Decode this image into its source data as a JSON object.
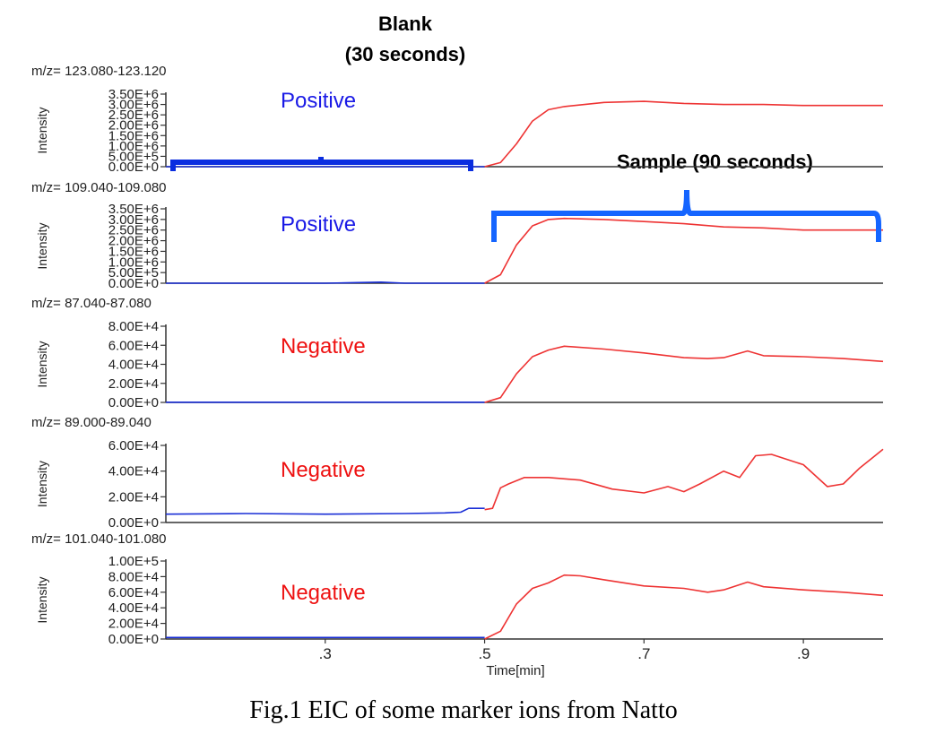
{
  "annotations": {
    "blank_title": "Blank",
    "blank_duration": "(30 seconds)",
    "sample_label": "Sample (90 seconds)"
  },
  "caption": "Fig.1 EIC of some marker ions from Natto",
  "colors": {
    "blank_trace": "#1a2fd6",
    "sample_trace": "#ee3333",
    "positive_mode": "#1a1ae6",
    "negative_mode": "#ee1111",
    "bracket": "#1565ff",
    "blank_bracket": "#0a2de0"
  },
  "chart_data": [
    {
      "type": "line",
      "title": "m/z= 123.080-123.120",
      "mode_label": "Positive",
      "ylabel": "Intensity",
      "xlabel": "",
      "xlim": [
        0.1,
        1.0
      ],
      "x_ticks": [],
      "ylim": [
        0,
        3500000
      ],
      "y_ticks": [
        {
          "v": 0,
          "label": "0.00E+0"
        },
        {
          "v": 500000,
          "label": "5.00E+5"
        },
        {
          "v": 1000000,
          "label": "1.00E+6"
        },
        {
          "v": 1500000,
          "label": "1.50E+6"
        },
        {
          "v": 2000000,
          "label": "2.00E+6"
        },
        {
          "v": 2500000,
          "label": "2.50E+6"
        },
        {
          "v": 3000000,
          "label": "3.00E+6"
        },
        {
          "v": 3500000,
          "label": "3.50E+6"
        }
      ],
      "series": [
        {
          "role": "blank",
          "x": [
            0.1,
            0.2,
            0.3,
            0.4,
            0.5
          ],
          "y": [
            0,
            0,
            0,
            0,
            0
          ]
        },
        {
          "role": "sample",
          "x": [
            0.5,
            0.52,
            0.54,
            0.56,
            0.58,
            0.6,
            0.65,
            0.7,
            0.75,
            0.8,
            0.85,
            0.9,
            0.95,
            1.0
          ],
          "y": [
            0,
            200000,
            1100000,
            2200000,
            2750000,
            2900000,
            3100000,
            3150000,
            3050000,
            3000000,
            3000000,
            2950000,
            2950000,
            2950000
          ]
        }
      ]
    },
    {
      "type": "line",
      "title": "m/z= 109.040-109.080",
      "mode_label": "Positive",
      "ylabel": "Intensity",
      "xlabel": "",
      "xlim": [
        0.1,
        1.0
      ],
      "x_ticks": [],
      "ylim": [
        0,
        3500000
      ],
      "y_ticks": [
        {
          "v": 0,
          "label": "0.00E+0"
        },
        {
          "v": 500000,
          "label": "5.00E+5"
        },
        {
          "v": 1000000,
          "label": "1.00E+6"
        },
        {
          "v": 1500000,
          "label": "1.50E+6"
        },
        {
          "v": 2000000,
          "label": "2.00E+6"
        },
        {
          "v": 2500000,
          "label": "2.50E+6"
        },
        {
          "v": 3000000,
          "label": "3.00E+6"
        },
        {
          "v": 3500000,
          "label": "3.50E+6"
        }
      ],
      "series": [
        {
          "role": "blank",
          "x": [
            0.1,
            0.2,
            0.3,
            0.34,
            0.37,
            0.4,
            0.5
          ],
          "y": [
            0,
            0,
            0,
            30000,
            50000,
            0,
            0
          ]
        },
        {
          "role": "sample",
          "x": [
            0.5,
            0.52,
            0.54,
            0.56,
            0.58,
            0.6,
            0.65,
            0.7,
            0.75,
            0.8,
            0.85,
            0.9,
            0.95,
            1.0
          ],
          "y": [
            0,
            400000,
            1800000,
            2700000,
            3000000,
            3050000,
            3000000,
            2900000,
            2800000,
            2650000,
            2600000,
            2500000,
            2500000,
            2500000
          ]
        }
      ]
    },
    {
      "type": "line",
      "title": "m/z= 87.040-87.080",
      "mode_label": "Negative",
      "ylabel": "Intensity",
      "xlabel": "",
      "xlim": [
        0.1,
        1.0
      ],
      "x_ticks": [],
      "ylim": [
        0,
        80000
      ],
      "y_ticks": [
        {
          "v": 0,
          "label": "0.00E+0"
        },
        {
          "v": 20000,
          "label": "2.00E+4"
        },
        {
          "v": 40000,
          "label": "4.00E+4"
        },
        {
          "v": 60000,
          "label": "6.00E+4"
        },
        {
          "v": 80000,
          "label": "8.00E+4"
        }
      ],
      "series": [
        {
          "role": "blank",
          "x": [
            0.1,
            0.2,
            0.3,
            0.4,
            0.5
          ],
          "y": [
            200,
            200,
            200,
            200,
            200
          ]
        },
        {
          "role": "sample",
          "x": [
            0.5,
            0.52,
            0.54,
            0.56,
            0.58,
            0.6,
            0.65,
            0.7,
            0.75,
            0.78,
            0.8,
            0.83,
            0.85,
            0.9,
            0.95,
            1.0
          ],
          "y": [
            0,
            5000,
            30000,
            48000,
            55000,
            59000,
            56000,
            52000,
            47000,
            46000,
            47000,
            54000,
            49000,
            48000,
            46000,
            43000
          ]
        }
      ]
    },
    {
      "type": "line",
      "title": "m/z= 89.000-89.040",
      "mode_label": "Negative",
      "ylabel": "Intensity",
      "xlabel": "",
      "xlim": [
        0.1,
        1.0
      ],
      "x_ticks": [],
      "ylim": [
        0,
        60000
      ],
      "y_ticks": [
        {
          "v": 0,
          "label": "0.00E+0"
        },
        {
          "v": 20000,
          "label": "2.00E+4"
        },
        {
          "v": 40000,
          "label": "4.00E+4"
        },
        {
          "v": 60000,
          "label": "6.00E+4"
        }
      ],
      "series": [
        {
          "role": "blank",
          "x": [
            0.1,
            0.2,
            0.3,
            0.4,
            0.45,
            0.47,
            0.48,
            0.5
          ],
          "y": [
            6500,
            7000,
            6500,
            7000,
            7500,
            8000,
            11000,
            11000
          ]
        },
        {
          "role": "sample",
          "x": [
            0.5,
            0.51,
            0.52,
            0.53,
            0.55,
            0.58,
            0.62,
            0.66,
            0.7,
            0.73,
            0.75,
            0.77,
            0.8,
            0.82,
            0.84,
            0.86,
            0.88,
            0.9,
            0.93,
            0.95,
            0.97,
            1.0
          ],
          "y": [
            10000,
            11000,
            27000,
            30000,
            35000,
            35000,
            33000,
            26000,
            23000,
            28000,
            24000,
            30000,
            40000,
            35000,
            52000,
            53000,
            49000,
            45000,
            28000,
            30000,
            42000,
            57000
          ]
        }
      ]
    },
    {
      "type": "line",
      "title": "m/z= 101.040-101.080",
      "mode_label": "Negative",
      "ylabel": "Intensity",
      "xlabel": "Time[min]",
      "xlim": [
        0.1,
        1.0
      ],
      "x_ticks": [
        {
          "v": 0.3,
          "label": ".3"
        },
        {
          "v": 0.5,
          "label": ".5"
        },
        {
          "v": 0.7,
          "label": ".7"
        },
        {
          "v": 0.9,
          "label": ".9"
        }
      ],
      "ylim": [
        0,
        100000
      ],
      "y_ticks": [
        {
          "v": 0,
          "label": "0.00E+0"
        },
        {
          "v": 20000,
          "label": "2.00E+4"
        },
        {
          "v": 40000,
          "label": "4.00E+4"
        },
        {
          "v": 60000,
          "label": "6.00E+4"
        },
        {
          "v": 80000,
          "label": "8.00E+4"
        },
        {
          "v": 100000,
          "label": "1.00E+5"
        }
      ],
      "series": [
        {
          "role": "blank",
          "x": [
            0.1,
            0.2,
            0.3,
            0.4,
            0.5
          ],
          "y": [
            2000,
            2000,
            2000,
            2000,
            2000
          ]
        },
        {
          "role": "sample",
          "x": [
            0.5,
            0.52,
            0.54,
            0.56,
            0.58,
            0.6,
            0.62,
            0.65,
            0.7,
            0.75,
            0.78,
            0.8,
            0.83,
            0.85,
            0.9,
            0.95,
            1.0
          ],
          "y": [
            0,
            10000,
            45000,
            65000,
            72000,
            82000,
            81000,
            76000,
            68000,
            65000,
            60000,
            63000,
            73000,
            67000,
            63000,
            60000,
            56000
          ]
        }
      ]
    }
  ]
}
